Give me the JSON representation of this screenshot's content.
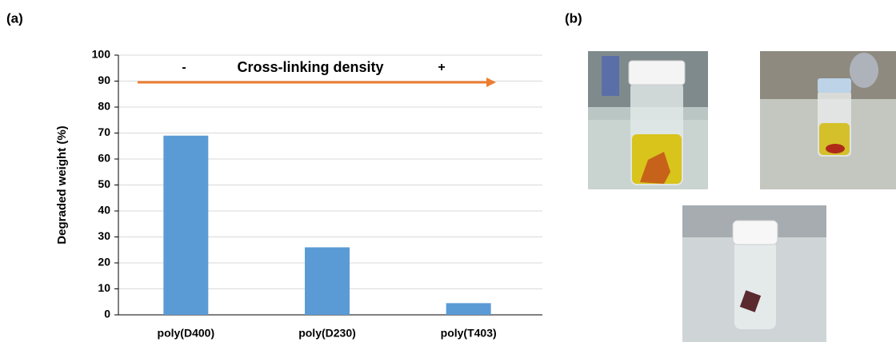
{
  "panel_labels": [
    "(a)",
    "(b)"
  ],
  "chart_data": {
    "type": "bar",
    "y_label": "Degraded weight (%)",
    "categories": [
      "poly(D400)",
      "poly(D230)",
      "poly(T403)"
    ],
    "values": [
      69,
      26,
      4.5
    ],
    "color": "#5b9bd5",
    "ylim": [
      0,
      100
    ],
    "yticks": [
      0,
      10,
      20,
      30,
      40,
      50,
      60,
      70,
      80,
      90,
      100
    ],
    "grid": true,
    "arrow": {
      "label": "Cross-linking density",
      "start": "-",
      "end": "+",
      "color": "#ed7d31"
    }
  }
}
